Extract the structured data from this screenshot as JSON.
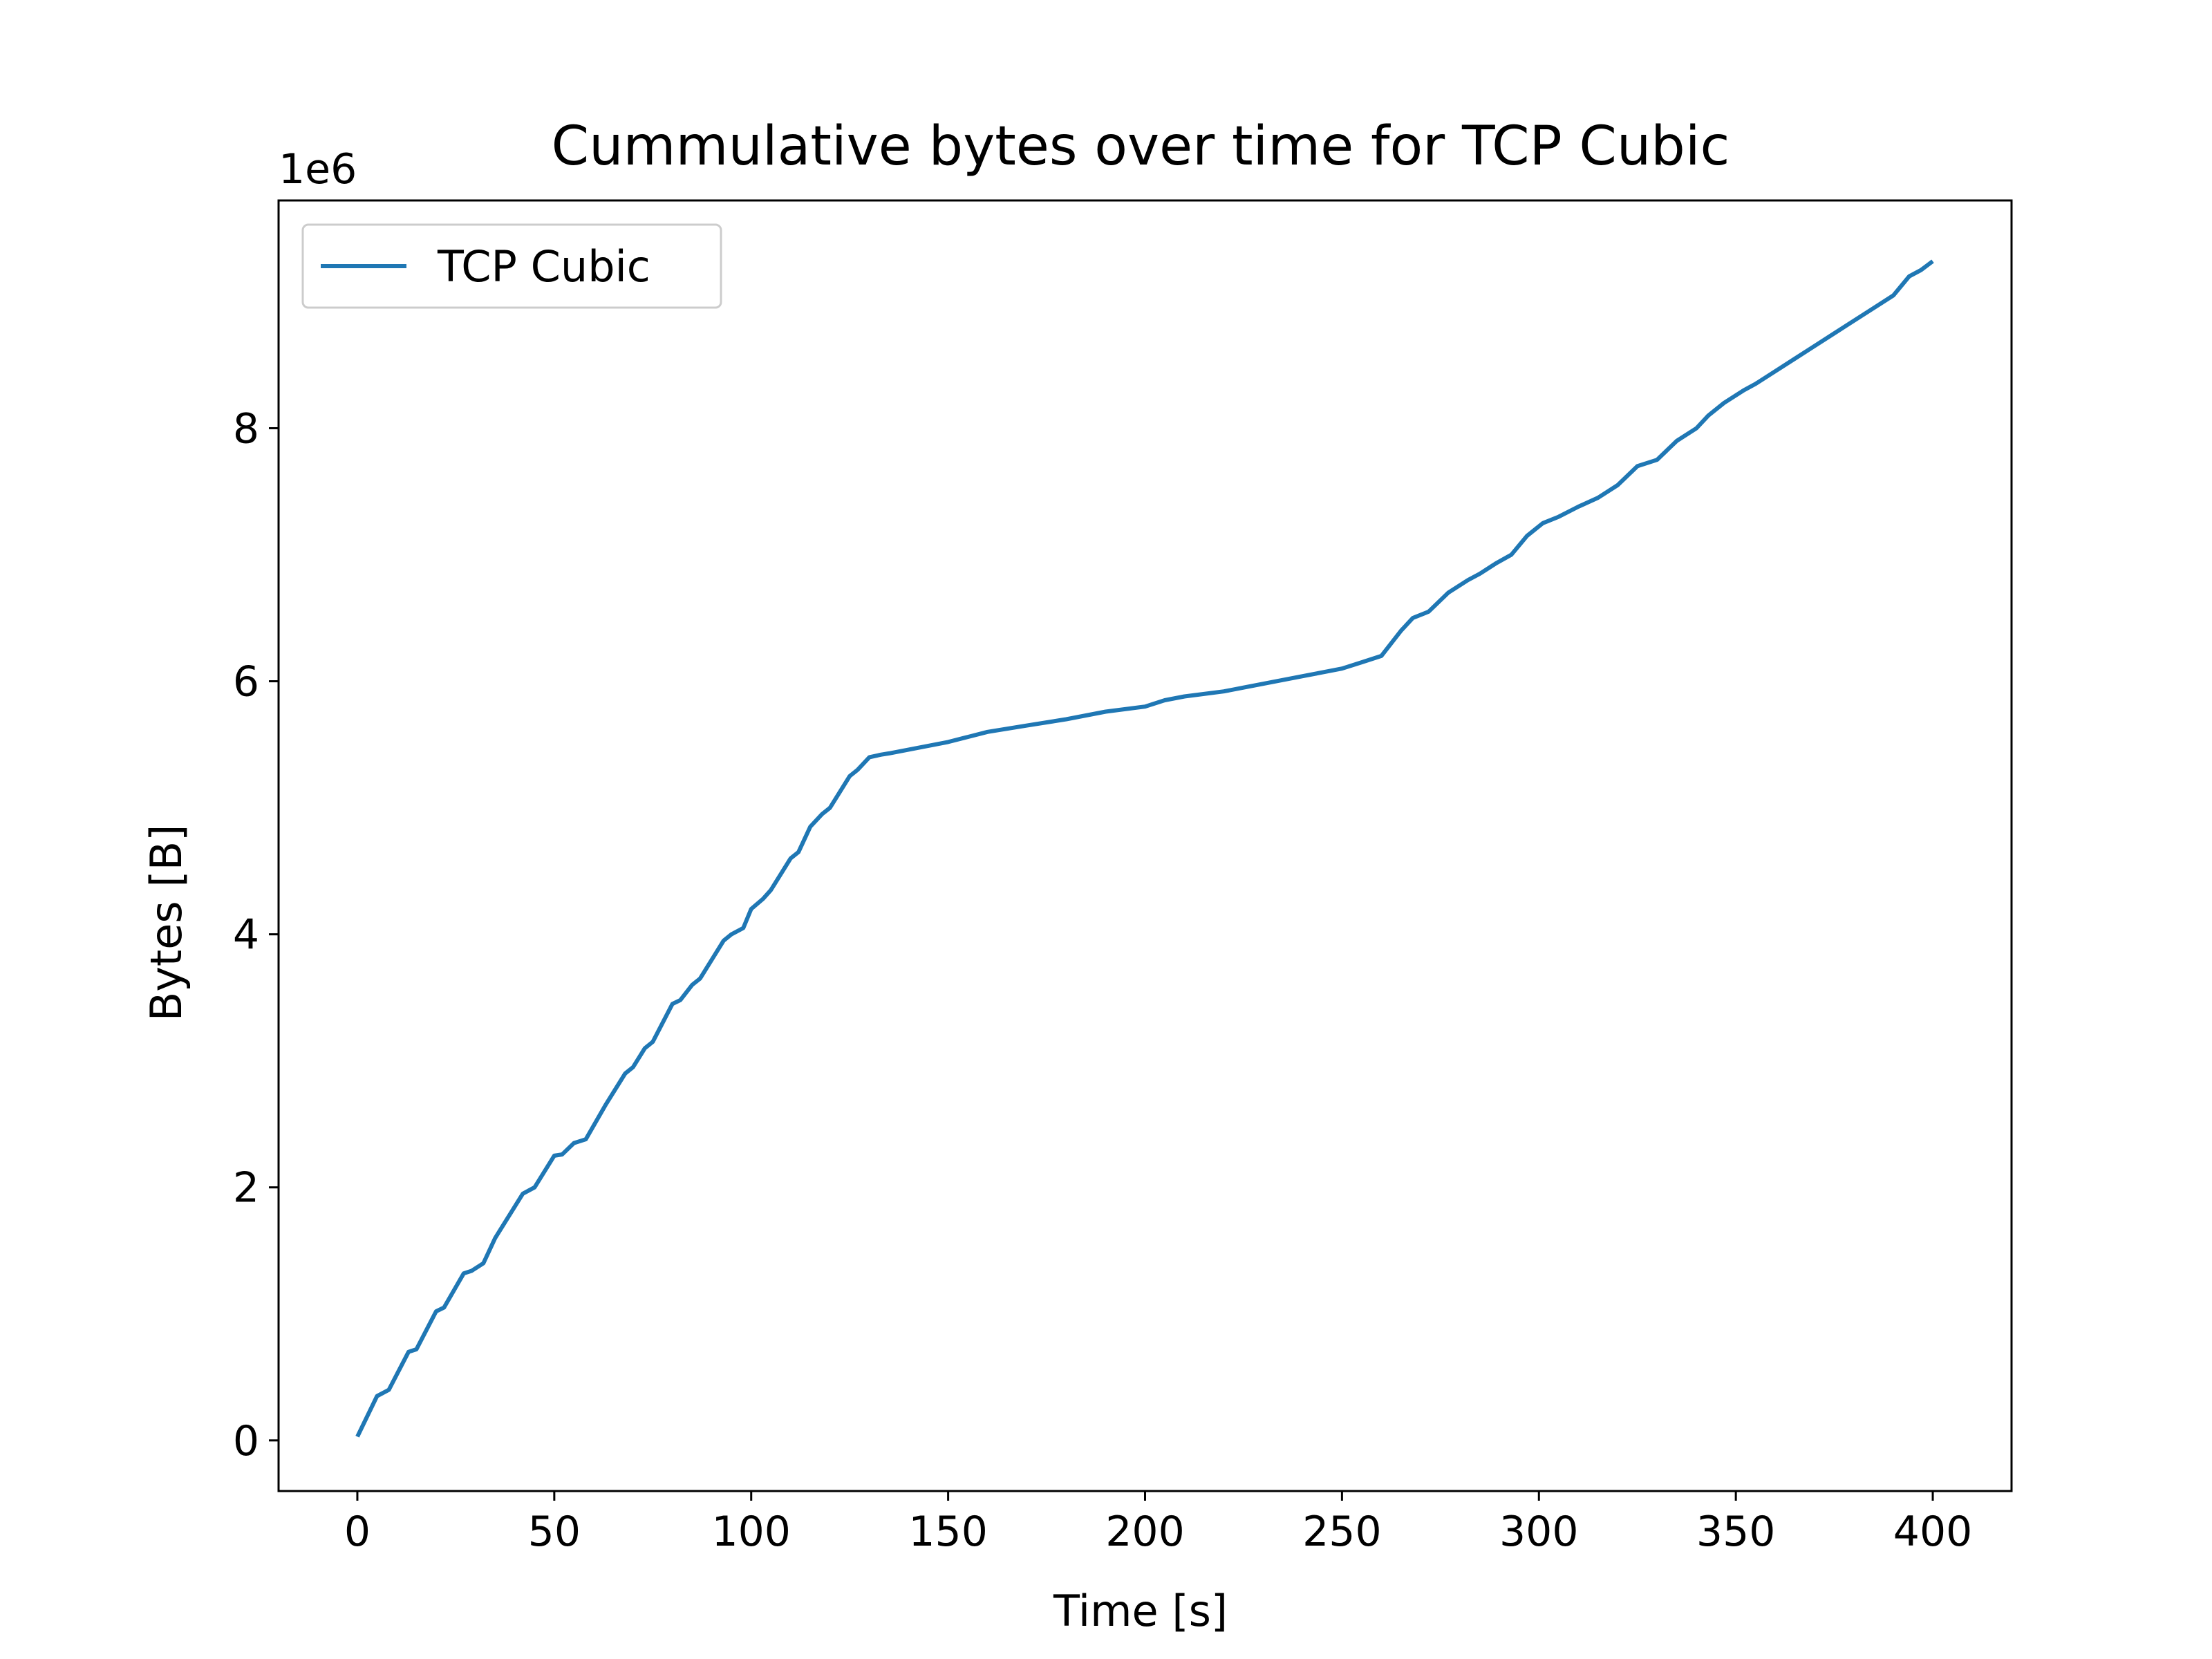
{
  "chart_data": {
    "type": "line",
    "title": "Cummulative bytes over time for TCP Cubic",
    "xlabel": "Time [s]",
    "ylabel": "Bytes [B]",
    "y_offset_text": "1e6",
    "y_multiplier": 1000000,
    "xlim": [
      -20,
      420
    ],
    "ylim": [
      -400000,
      9800000
    ],
    "x_ticks": [
      0,
      50,
      100,
      150,
      200,
      250,
      300,
      350,
      400
    ],
    "x_tick_labels": [
      "0",
      "50",
      "100",
      "150",
      "200",
      "250",
      "300",
      "350",
      "400"
    ],
    "y_ticks": [
      0,
      2000000,
      4000000,
      6000000,
      8000000
    ],
    "y_tick_labels": [
      "0",
      "2",
      "4",
      "6",
      "8"
    ],
    "grid": false,
    "legend_position": "top-left",
    "series": [
      {
        "name": "TCP Cubic",
        "color": "#1f77b4",
        "x": [
          0,
          5,
          8,
          13,
          15,
          20,
          22,
          27,
          29,
          32,
          35,
          42,
          45,
          50,
          52,
          55,
          58,
          63,
          68,
          70,
          73,
          75,
          80,
          82,
          85,
          87,
          90,
          93,
          95,
          98,
          100,
          103,
          105,
          110,
          112,
          115,
          118,
          120,
          125,
          127,
          130,
          133,
          135,
          140,
          145,
          150,
          155,
          160,
          170,
          180,
          190,
          200,
          205,
          210,
          220,
          225,
          230,
          235,
          240,
          245,
          250,
          255,
          260,
          265,
          268,
          272,
          277,
          282,
          285,
          289,
          293,
          297,
          301,
          305,
          310,
          315,
          320,
          325,
          330,
          335,
          340,
          343,
          347,
          352,
          355,
          360,
          365,
          370,
          375,
          380,
          385,
          390,
          394,
          397,
          400
        ],
        "y": [
          30000,
          350000,
          400000,
          700000,
          720000,
          1020000,
          1050000,
          1320000,
          1340000,
          1400000,
          1600000,
          1950000,
          2000000,
          2250000,
          2260000,
          2350000,
          2380000,
          2650000,
          2900000,
          2950000,
          3100000,
          3150000,
          3450000,
          3480000,
          3600000,
          3650000,
          3800000,
          3950000,
          4000000,
          4050000,
          4200000,
          4280000,
          4350000,
          4600000,
          4650000,
          4850000,
          4950000,
          5000000,
          5250000,
          5300000,
          5400000,
          5420000,
          5430000,
          5460000,
          5490000,
          5520000,
          5560000,
          5600000,
          5650000,
          5700000,
          5760000,
          5800000,
          5850000,
          5880000,
          5920000,
          5950000,
          5980000,
          6010000,
          6040000,
          6070000,
          6100000,
          6150000,
          6200000,
          6400000,
          6500000,
          6550000,
          6700000,
          6800000,
          6850000,
          6930000,
          7000000,
          7150000,
          7250000,
          7300000,
          7380000,
          7450000,
          7550000,
          7700000,
          7750000,
          7900000,
          8000000,
          8100000,
          8200000,
          8300000,
          8350000,
          8450000,
          8550000,
          8650000,
          8750000,
          8850000,
          8950000,
          9050000,
          9200000,
          9250000,
          9320000
        ]
      }
    ]
  }
}
